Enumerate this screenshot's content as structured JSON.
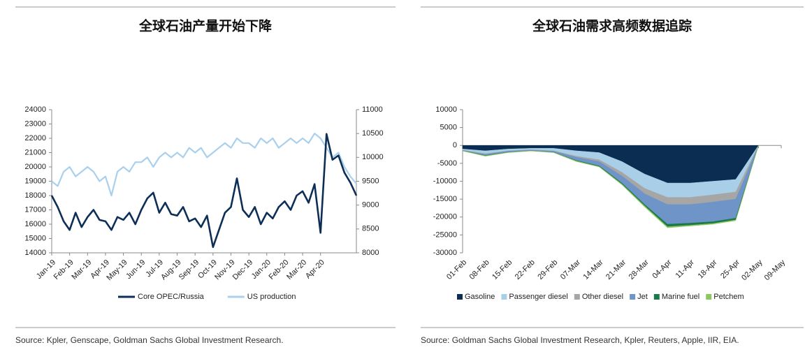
{
  "chart_data": [
    {
      "type": "line",
      "title": "全球石油产量开始下降",
      "source": "Source: Kpler, Genscape, Goldman Sachs Global Investment Research.",
      "categories": [
        "Jan-19",
        null,
        null,
        "Feb-19",
        null,
        null,
        "Mar-19",
        null,
        null,
        "Apr-19",
        null,
        null,
        "May-19",
        null,
        null,
        "Jun-19",
        null,
        null,
        "Jul-19",
        null,
        null,
        "Aug-19",
        null,
        null,
        "Sep-19",
        null,
        null,
        "Oct-19",
        null,
        null,
        "Nov-19",
        null,
        null,
        "Dec-19",
        null,
        null,
        "Jan-20",
        null,
        null,
        "Feb-20",
        null,
        null,
        "Mar-20",
        null,
        null,
        "Apr-20",
        null,
        null,
        null,
        null,
        null,
        null
      ],
      "series": [
        {
          "name": "Core OPEC/Russia",
          "color": "#0d2f57",
          "values": [
            18000,
            17200,
            16200,
            15600,
            16800,
            15800,
            16500,
            17000,
            16300,
            16200,
            15600,
            16500,
            16300,
            16800,
            16000,
            17000,
            17800,
            18200,
            16800,
            17500,
            16700,
            16600,
            17200,
            16200,
            16400,
            15800,
            16600,
            14400,
            15600,
            16800,
            17200,
            19200,
            17000,
            16500,
            17200,
            16000,
            16800,
            16400,
            17200,
            17600,
            17000,
            18000,
            18300,
            17500,
            18800,
            15400,
            22300,
            20500,
            20800,
            19600,
            18900,
            18000
          ]
        },
        {
          "name": "US production",
          "color": "#a9d0ec",
          "axis": "y2",
          "values": [
            9500,
            9400,
            9700,
            9800,
            9600,
            9700,
            9800,
            9700,
            9500,
            9600,
            9200,
            9700,
            9800,
            9700,
            9900,
            9900,
            10000,
            9800,
            10000,
            10100,
            10000,
            10100,
            10000,
            10200,
            10100,
            10200,
            10000,
            10100,
            10200,
            10300,
            10200,
            10400,
            10300,
            10300,
            10200,
            10400,
            10300,
            10400,
            10200,
            10300,
            10400,
            10300,
            10400,
            10300,
            10500,
            10400,
            10200,
            10000,
            10100,
            9800,
            9600,
            9450
          ]
        }
      ],
      "ylim": [
        14000,
        24000
      ],
      "yticks": [
        14000,
        15000,
        16000,
        17000,
        18000,
        19000,
        20000,
        21000,
        22000,
        23000,
        24000
      ],
      "y2lim": [
        8000,
        11000
      ],
      "y2ticks": [
        8000,
        8500,
        9000,
        9500,
        10000,
        10500,
        11000
      ],
      "legend": "bottom"
    },
    {
      "type": "area",
      "title": "全球石油需求高频数据追踪",
      "source": "Source: Goldman Sachs Global Investment Research, Kpler, Reuters, Apple, IIR, EIA.",
      "categories": [
        "01-Feb",
        "08-Feb",
        "15-Feb",
        "22-Feb",
        "29-Feb",
        "07-Mar",
        "14-Mar",
        "21-Mar",
        "28-Mar",
        "04-Apr",
        "11-Apr",
        "18-Apr",
        "25-Apr",
        "02-May",
        "09-May"
      ],
      "series": [
        {
          "name": "Gasoline",
          "color": "#0b2d52",
          "values": [
            -1000,
            -1500,
            -1000,
            -800,
            -800,
            -1500,
            -2000,
            -4500,
            -8000,
            -10500,
            -10500,
            -10000,
            -9500,
            0,
            null
          ]
        },
        {
          "name": "Passenger diesel",
          "color": "#a9cfe8",
          "values": [
            -300,
            -800,
            -500,
            -400,
            -700,
            -1500,
            -2000,
            -3000,
            -4000,
            -4000,
            -4000,
            -3800,
            -3500,
            0,
            null
          ]
        },
        {
          "name": "Other diesel",
          "color": "#a6a6a6",
          "values": [
            -100,
            -200,
            -100,
            -100,
            -100,
            -300,
            -500,
            -1000,
            -1500,
            -2000,
            -2000,
            -2000,
            -2000,
            0,
            null
          ]
        },
        {
          "name": "Jet",
          "color": "#6f94c8",
          "values": [
            -100,
            -300,
            -300,
            -200,
            -300,
            -900,
            -1200,
            -2000,
            -3000,
            -5500,
            -5200,
            -5500,
            -5300,
            0,
            null
          ]
        },
        {
          "name": "Marine fuel",
          "color": "#1c7a4a",
          "values": [
            0,
            -100,
            -50,
            0,
            -50,
            -150,
            -200,
            -300,
            -400,
            -700,
            -600,
            -500,
            -500,
            0,
            null
          ]
        },
        {
          "name": "Petchem",
          "color": "#8cc861",
          "values": [
            -50,
            -100,
            -50,
            -50,
            -50,
            -150,
            -100,
            -200,
            -300,
            -300,
            -200,
            -200,
            -200,
            0,
            null
          ]
        }
      ],
      "ylim": [
        -30000,
        10000
      ],
      "yticks": [
        -30000,
        -25000,
        -20000,
        -15000,
        -10000,
        -5000,
        0,
        5000,
        10000
      ],
      "stacked": true,
      "legend": "bottom"
    }
  ]
}
